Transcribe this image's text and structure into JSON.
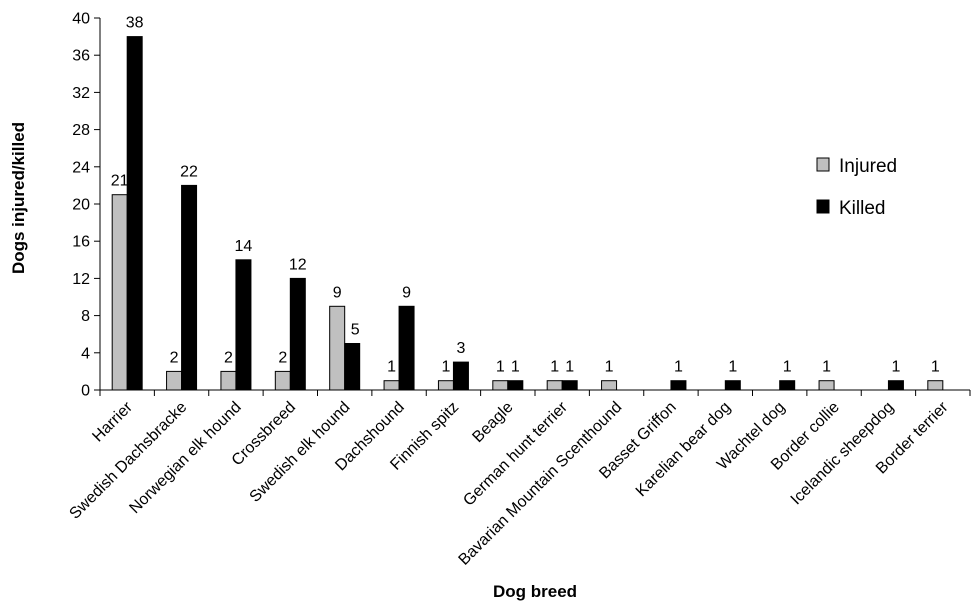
{
  "chart_data": {
    "type": "bar",
    "title": "",
    "xlabel": "Dog breed",
    "ylabel": "Dogs injured/killed",
    "ylim": [
      0,
      40
    ],
    "yticks": [
      0,
      4,
      8,
      12,
      16,
      20,
      24,
      28,
      32,
      36,
      40
    ],
    "grid": false,
    "legend_position": "right",
    "categories": [
      "Harrier",
      "Swedish Dachsbracke",
      "Norwegian elk hound",
      "Crossbreed",
      "Swedish elk hound",
      "Dachshound",
      "Finnish spitz",
      "Beagle",
      "German hunt terrier",
      "Bavarian Mountain Scenthound",
      "Basset Griffon",
      "Karelian bear dog",
      "Wachtel dog",
      "Border collie",
      "Icelandic sheepdog",
      "Border terrier"
    ],
    "series": [
      {
        "name": "Injured",
        "color": "#c0c0c0",
        "values": [
          21,
          2,
          2,
          2,
          9,
          1,
          1,
          1,
          1,
          1,
          0,
          0,
          0,
          1,
          0,
          1
        ]
      },
      {
        "name": "Killed",
        "color": "#000000",
        "values": [
          38,
          22,
          14,
          12,
          5,
          9,
          3,
          1,
          1,
          0,
          1,
          1,
          1,
          0,
          1,
          0
        ]
      }
    ]
  }
}
